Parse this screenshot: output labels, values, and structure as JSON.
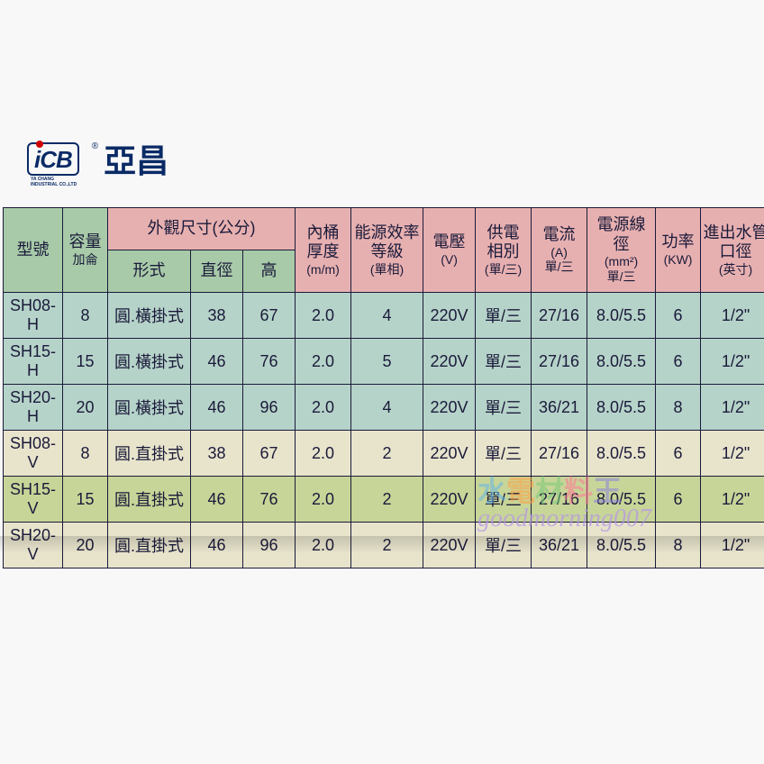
{
  "logo": {
    "abbr": "iCB",
    "name": "亞昌",
    "reg": "®",
    "sub": "YA CHANG INDUSTRIAL CO.,LTD"
  },
  "headers": {
    "model": "型號",
    "capacity": "容量",
    "capacity_sub": "加侖",
    "dims_group": "外觀尺寸(公分)",
    "type": "形式",
    "dia": "直徑",
    "height": "高",
    "thickness": "內桶",
    "thickness2": "厚度",
    "thickness_sub": "(m/m)",
    "eff": "能源效率",
    "eff2": "等級",
    "eff_sub": "(單相)",
    "volt": "電壓",
    "volt_sub": "(V)",
    "phase": "供電",
    "phase2": "相別",
    "phase_sub": "(單/三)",
    "amp": "電流",
    "amp_sub": "(A)",
    "amp_sub2": "單/三",
    "wire": "電源線徑",
    "wire_sub": "(mm²)",
    "wire_sub2": "單/三",
    "kw": "功率",
    "kw_sub": "(KW)",
    "pipe": "進出水管",
    "pipe2": "口徑",
    "pipe_sub": "(英寸)"
  },
  "rows": [
    {
      "model": "SH08-H",
      "cap": "8",
      "type": "圓.橫掛式",
      "dia": "38",
      "h": "67",
      "thick": "2.0",
      "eff": "4",
      "volt": "220V",
      "phase": "單/三",
      "amp": "27/16",
      "wire": "8.0/5.5",
      "kw": "6",
      "pipe": "1/2\"",
      "cls": "row-blue"
    },
    {
      "model": "SH15-H",
      "cap": "15",
      "type": "圓.橫掛式",
      "dia": "46",
      "h": "76",
      "thick": "2.0",
      "eff": "5",
      "volt": "220V",
      "phase": "單/三",
      "amp": "27/16",
      "wire": "8.0/5.5",
      "kw": "6",
      "pipe": "1/2\"",
      "cls": "row-blue"
    },
    {
      "model": "SH20-H",
      "cap": "20",
      "type": "圓.橫掛式",
      "dia": "46",
      "h": "96",
      "thick": "2.0",
      "eff": "4",
      "volt": "220V",
      "phase": "單/三",
      "amp": "36/21",
      "wire": "8.0/5.5",
      "kw": "8",
      "pipe": "1/2\"",
      "cls": "row-blue"
    },
    {
      "model": "SH08-V",
      "cap": "8",
      "type": "圓.直掛式",
      "dia": "38",
      "h": "67",
      "thick": "2.0",
      "eff": "2",
      "volt": "220V",
      "phase": "單/三",
      "amp": "27/16",
      "wire": "8.0/5.5",
      "kw": "6",
      "pipe": "1/2\"",
      "cls": "row-cream"
    },
    {
      "model": "SH15-V",
      "cap": "15",
      "type": "圓.直掛式",
      "dia": "46",
      "h": "76",
      "thick": "2.0",
      "eff": "2",
      "volt": "220V",
      "phase": "單/三",
      "amp": "27/16",
      "wire": "8.0/5.5",
      "kw": "6",
      "pipe": "1/2\"",
      "cls": "row-olive"
    },
    {
      "model": "SH20-V",
      "cap": "20",
      "type": "圓.直掛式",
      "dia": "46",
      "h": "96",
      "thick": "2.0",
      "eff": "2",
      "volt": "220V",
      "phase": "單/三",
      "amp": "36/21",
      "wire": "8.0/5.5",
      "kw": "8",
      "pipe": "1/2\"",
      "cls": "row-cream"
    }
  ],
  "watermark": {
    "chars": [
      "水",
      "電",
      "材",
      "料",
      "王"
    ],
    "text2": "goodmorning007"
  }
}
